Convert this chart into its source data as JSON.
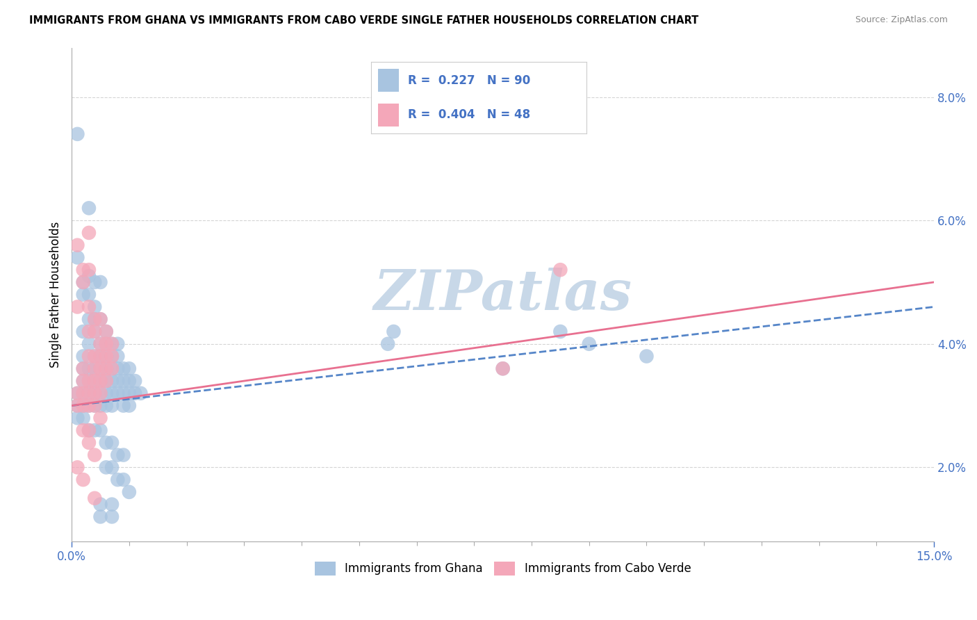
{
  "title": "IMMIGRANTS FROM GHANA VS IMMIGRANTS FROM CABO VERDE SINGLE FATHER HOUSEHOLDS CORRELATION CHART",
  "source": "Source: ZipAtlas.com",
  "ylabel": "Single Father Households",
  "xlim": [
    0.0,
    0.15
  ],
  "ylim": [
    0.008,
    0.088
  ],
  "ghana_color": "#a8c4e0",
  "caboverde_color": "#f4a7b9",
  "ghana_R": 0.227,
  "ghana_N": 90,
  "caboverde_R": 0.404,
  "caboverde_N": 48,
  "ghana_trend_x": [
    0.0,
    0.15
  ],
  "ghana_trend_y": [
    0.03,
    0.046
  ],
  "caboverde_trend_x": [
    0.0,
    0.15
  ],
  "caboverde_trend_y": [
    0.03,
    0.05
  ],
  "ghana_scatter": [
    [
      0.001,
      0.074
    ],
    [
      0.003,
      0.062
    ],
    [
      0.001,
      0.054
    ],
    [
      0.003,
      0.051
    ],
    [
      0.002,
      0.05
    ],
    [
      0.005,
      0.05
    ],
    [
      0.004,
      0.05
    ],
    [
      0.002,
      0.048
    ],
    [
      0.003,
      0.048
    ],
    [
      0.004,
      0.046
    ],
    [
      0.003,
      0.044
    ],
    [
      0.004,
      0.044
    ],
    [
      0.005,
      0.044
    ],
    [
      0.002,
      0.042
    ],
    [
      0.004,
      0.042
    ],
    [
      0.006,
      0.042
    ],
    [
      0.003,
      0.04
    ],
    [
      0.005,
      0.04
    ],
    [
      0.006,
      0.04
    ],
    [
      0.007,
      0.04
    ],
    [
      0.008,
      0.04
    ],
    [
      0.002,
      0.038
    ],
    [
      0.004,
      0.038
    ],
    [
      0.005,
      0.038
    ],
    [
      0.006,
      0.038
    ],
    [
      0.007,
      0.038
    ],
    [
      0.008,
      0.038
    ],
    [
      0.002,
      0.036
    ],
    [
      0.003,
      0.036
    ],
    [
      0.004,
      0.036
    ],
    [
      0.005,
      0.036
    ],
    [
      0.006,
      0.036
    ],
    [
      0.007,
      0.036
    ],
    [
      0.008,
      0.036
    ],
    [
      0.009,
      0.036
    ],
    [
      0.01,
      0.036
    ],
    [
      0.002,
      0.034
    ],
    [
      0.003,
      0.034
    ],
    [
      0.004,
      0.034
    ],
    [
      0.005,
      0.034
    ],
    [
      0.006,
      0.034
    ],
    [
      0.007,
      0.034
    ],
    [
      0.008,
      0.034
    ],
    [
      0.009,
      0.034
    ],
    [
      0.01,
      0.034
    ],
    [
      0.011,
      0.034
    ],
    [
      0.001,
      0.032
    ],
    [
      0.002,
      0.032
    ],
    [
      0.003,
      0.032
    ],
    [
      0.004,
      0.032
    ],
    [
      0.005,
      0.032
    ],
    [
      0.006,
      0.032
    ],
    [
      0.007,
      0.032
    ],
    [
      0.008,
      0.032
    ],
    [
      0.009,
      0.032
    ],
    [
      0.01,
      0.032
    ],
    [
      0.011,
      0.032
    ],
    [
      0.012,
      0.032
    ],
    [
      0.001,
      0.03
    ],
    [
      0.002,
      0.03
    ],
    [
      0.003,
      0.03
    ],
    [
      0.004,
      0.03
    ],
    [
      0.005,
      0.03
    ],
    [
      0.006,
      0.03
    ],
    [
      0.007,
      0.03
    ],
    [
      0.009,
      0.03
    ],
    [
      0.01,
      0.03
    ],
    [
      0.001,
      0.028
    ],
    [
      0.002,
      0.028
    ],
    [
      0.003,
      0.026
    ],
    [
      0.004,
      0.026
    ],
    [
      0.005,
      0.026
    ],
    [
      0.006,
      0.024
    ],
    [
      0.007,
      0.024
    ],
    [
      0.008,
      0.022
    ],
    [
      0.009,
      0.022
    ],
    [
      0.006,
      0.02
    ],
    [
      0.007,
      0.02
    ],
    [
      0.008,
      0.018
    ],
    [
      0.009,
      0.018
    ],
    [
      0.01,
      0.016
    ],
    [
      0.005,
      0.014
    ],
    [
      0.007,
      0.014
    ],
    [
      0.005,
      0.012
    ],
    [
      0.007,
      0.012
    ],
    [
      0.056,
      0.042
    ],
    [
      0.085,
      0.042
    ],
    [
      0.1,
      0.038
    ],
    [
      0.055,
      0.04
    ],
    [
      0.075,
      0.036
    ],
    [
      0.09,
      0.04
    ]
  ],
  "caboverde_scatter": [
    [
      0.001,
      0.056
    ],
    [
      0.003,
      0.058
    ],
    [
      0.002,
      0.052
    ],
    [
      0.003,
      0.052
    ],
    [
      0.002,
      0.05
    ],
    [
      0.001,
      0.046
    ],
    [
      0.003,
      0.046
    ],
    [
      0.004,
      0.044
    ],
    [
      0.005,
      0.044
    ],
    [
      0.003,
      0.042
    ],
    [
      0.004,
      0.042
    ],
    [
      0.006,
      0.042
    ],
    [
      0.005,
      0.04
    ],
    [
      0.006,
      0.04
    ],
    [
      0.007,
      0.04
    ],
    [
      0.003,
      0.038
    ],
    [
      0.004,
      0.038
    ],
    [
      0.005,
      0.038
    ],
    [
      0.006,
      0.038
    ],
    [
      0.007,
      0.038
    ],
    [
      0.002,
      0.036
    ],
    [
      0.004,
      0.036
    ],
    [
      0.005,
      0.036
    ],
    [
      0.006,
      0.036
    ],
    [
      0.007,
      0.036
    ],
    [
      0.002,
      0.034
    ],
    [
      0.003,
      0.034
    ],
    [
      0.004,
      0.034
    ],
    [
      0.005,
      0.034
    ],
    [
      0.006,
      0.034
    ],
    [
      0.001,
      0.032
    ],
    [
      0.002,
      0.032
    ],
    [
      0.003,
      0.032
    ],
    [
      0.004,
      0.032
    ],
    [
      0.005,
      0.032
    ],
    [
      0.001,
      0.03
    ],
    [
      0.002,
      0.03
    ],
    [
      0.003,
      0.03
    ],
    [
      0.004,
      0.03
    ],
    [
      0.005,
      0.028
    ],
    [
      0.002,
      0.026
    ],
    [
      0.003,
      0.026
    ],
    [
      0.003,
      0.024
    ],
    [
      0.004,
      0.022
    ],
    [
      0.001,
      0.02
    ],
    [
      0.002,
      0.018
    ],
    [
      0.004,
      0.015
    ],
    [
      0.085,
      0.052
    ],
    [
      0.075,
      0.036
    ]
  ],
  "watermark": "ZIPatlas",
  "watermark_color": "#c8d8e8",
  "legend_color": "#4472c4",
  "grid_color": "#d0d0d0"
}
